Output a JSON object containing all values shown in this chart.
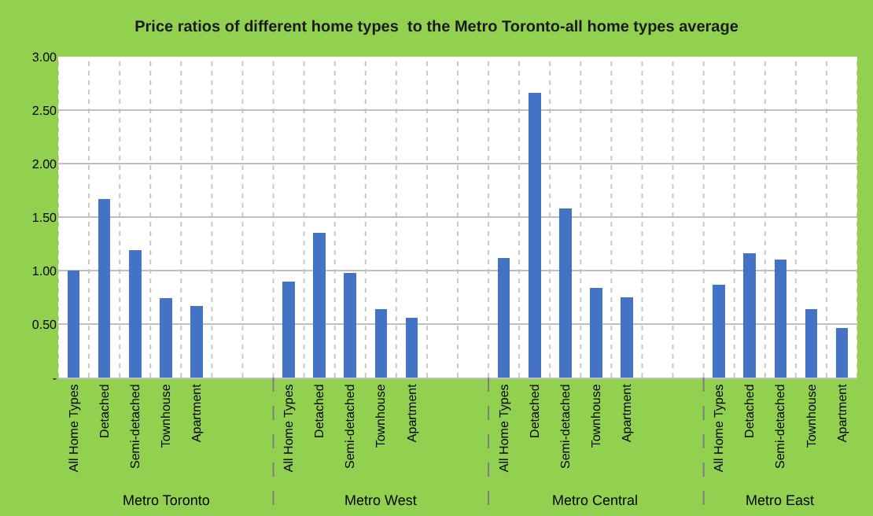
{
  "chart_data": {
    "type": "bar",
    "title": "Price ratios of different home types  to the Metro Toronto-all home types average",
    "categories": [
      "All Home Types",
      "Detached",
      "Semi-detached",
      "Townhouse",
      "Apartment",
      null,
      null,
      "All Home Types",
      "Detached",
      "Semi-detached",
      "Townhouse",
      "Apartment",
      null,
      null,
      "All Home Types",
      "Detached",
      "Semi-detached",
      "Townhouse",
      "Apartment",
      null,
      null,
      "All Home Types",
      "Detached",
      "Semi-detached",
      "Townhouse",
      "Apartment"
    ],
    "values": [
      1.0,
      1.67,
      1.19,
      0.74,
      0.67,
      null,
      null,
      0.9,
      1.35,
      0.98,
      0.64,
      0.56,
      null,
      null,
      1.12,
      2.66,
      1.58,
      0.84,
      0.75,
      null,
      null,
      0.87,
      1.16,
      1.1,
      0.64,
      0.46
    ],
    "color": "#4472c4",
    "ylim": [
      0,
      3
    ],
    "yticks": [
      {
        "value": 0,
        "label": "-"
      },
      {
        "value": 0.5,
        "label": "0.50"
      },
      {
        "value": 1,
        "label": "1.00"
      },
      {
        "value": 1.5,
        "label": "1.50"
      },
      {
        "value": 2,
        "label": "2.00"
      },
      {
        "value": 2.5,
        "label": "2.50"
      },
      {
        "value": 3,
        "label": "3.00"
      }
    ],
    "grid": true,
    "annotations": [
      "Metro Toronto",
      "Metro West",
      "Metro Central",
      "Metro East"
    ]
  }
}
